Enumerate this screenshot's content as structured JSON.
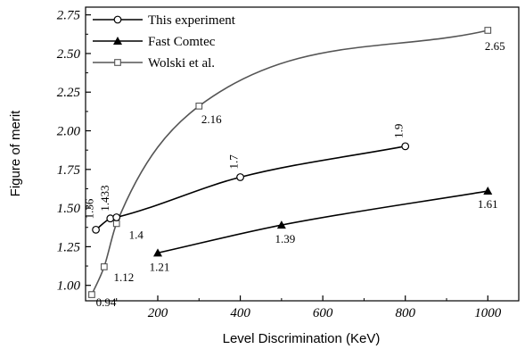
{
  "chart_data": {
    "type": "line",
    "xlabel": "Level Discrimination (KeV)",
    "ylabel": "Figure of merit",
    "xlim": [
      25,
      1075
    ],
    "ylim": [
      0.9,
      2.8
    ],
    "xticks": [
      200,
      400,
      600,
      800,
      1000
    ],
    "xtick_labels": [
      "200",
      "400",
      "600",
      "800",
      "1000"
    ],
    "yticks": [
      1.0,
      1.25,
      1.5,
      1.75,
      2.0,
      2.25,
      2.5,
      2.75
    ],
    "ytick_labels": [
      "1.00",
      "1.25",
      "1.50",
      "1.75",
      "2.00",
      "2.25",
      "2.50",
      "2.75"
    ],
    "legend_position": "top-left",
    "series": [
      {
        "name": "This experiment",
        "marker": "circle",
        "color": "#000000",
        "x": [
          50,
          85,
          100,
          400,
          800
        ],
        "y": [
          1.36,
          1.433,
          1.44,
          1.7,
          1.9
        ],
        "labels": [
          "1.36",
          "1.433",
          "",
          "1.7",
          "1.9"
        ]
      },
      {
        "name": "Fast Comtec",
        "marker": "triangle",
        "color": "#000000",
        "x": [
          200,
          500,
          1000
        ],
        "y": [
          1.21,
          1.39,
          1.61
        ],
        "labels": [
          "1.21",
          "1.39",
          "1.61"
        ]
      },
      {
        "name": "Wolski et al.",
        "marker": "square",
        "color": "#555555",
        "x": [
          40,
          70,
          100,
          300,
          1000
        ],
        "y": [
          0.94,
          1.12,
          1.4,
          2.16,
          2.65
        ],
        "labels": [
          "0.94",
          "1.12",
          "1.4",
          "2.16",
          "2.65"
        ]
      }
    ]
  }
}
